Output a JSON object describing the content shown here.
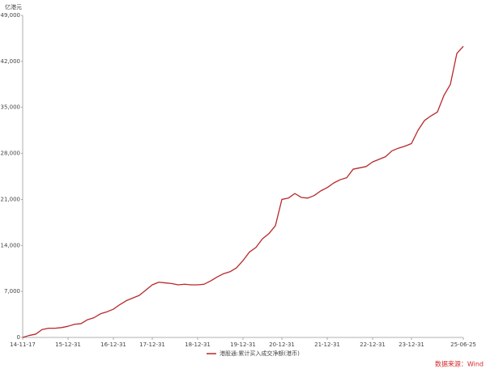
{
  "chart_data": {
    "type": "line",
    "y_unit_label": "亿港元",
    "source": "数据来源：Wind",
    "categories": [
      "14-11-17",
      null,
      null,
      null,
      null,
      null,
      null,
      "15-12-31",
      null,
      null,
      null,
      null,
      null,
      null,
      "16-12-31",
      null,
      null,
      null,
      null,
      null,
      "17-12-31",
      null,
      null,
      null,
      null,
      null,
      null,
      "18-12-31",
      null,
      null,
      null,
      null,
      null,
      null,
      "19-12-31",
      null,
      null,
      null,
      null,
      null,
      "20-12-31",
      null,
      null,
      null,
      null,
      null,
      null,
      "21-12-31",
      null,
      null,
      null,
      null,
      null,
      null,
      "22-12-31",
      null,
      null,
      null,
      null,
      null,
      "23-12-31",
      null,
      null,
      null,
      null,
      null,
      null,
      null,
      "25-06-25"
    ],
    "series": [
      {
        "name": "港股通:累计买入成交净额(港币)",
        "color": "#b8282a",
        "values": [
          0,
          300,
          500,
          1200,
          1400,
          1400,
          1500,
          1700,
          2000,
          2100,
          2700,
          3000,
          3600,
          3900,
          4300,
          5000,
          5600,
          6000,
          6400,
          7200,
          8000,
          8400,
          8300,
          8200,
          8000,
          8100,
          8000,
          8000,
          8100,
          8600,
          9200,
          9700,
          10000,
          10600,
          11700,
          13000,
          13700,
          15000,
          15800,
          17000,
          21000,
          21200,
          21900,
          21300,
          21200,
          21600,
          22300,
          22800,
          23500,
          24000,
          24300,
          25600,
          25800,
          26000,
          26700,
          27100,
          27500,
          28400,
          28800,
          29100,
          29500,
          31500,
          33000,
          33700,
          34300,
          36800,
          38500,
          43200,
          44300
        ]
      }
    ],
    "ylim": [
      0,
      49000
    ],
    "yticks": [
      0,
      {
        "value": 7000,
        "label": "7,000"
      },
      {
        "value": 14000,
        "label": "14,000"
      },
      {
        "value": 21000,
        "label": "21,000"
      },
      {
        "value": 28000,
        "label": "28,000"
      },
      {
        "value": 35000,
        "label": "35,000"
      },
      {
        "value": 42000,
        "label": "42,000"
      },
      {
        "value": 49000,
        "label": "49,000"
      }
    ],
    "grid": false,
    "legend": "bottom"
  }
}
